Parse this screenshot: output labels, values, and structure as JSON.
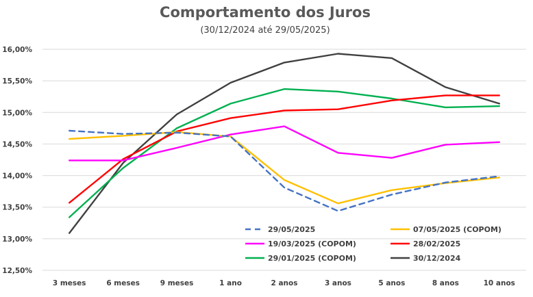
{
  "chart_data": {
    "type": "line",
    "title": "Comportamento dos Juros",
    "subtitle": "(30/12/2024 até 29/05/2025)",
    "categories": [
      "3 meses",
      "6 meses",
      "9 meses",
      "1 ano",
      "2 anos",
      "3 anos",
      "5 anos",
      "8 anos",
      "10 anos"
    ],
    "ylim": [
      12.5,
      16.0
    ],
    "y_ticks": [
      "12,50%",
      "13,00%",
      "13,50%",
      "14,00%",
      "14,50%",
      "15,00%",
      "15,50%",
      "16,00%"
    ],
    "y_tick_values": [
      12.5,
      13.0,
      13.5,
      14.0,
      14.5,
      15.0,
      15.5,
      16.0
    ],
    "grid": true,
    "legend_position": "bottom-right inside plot",
    "series": [
      {
        "name": "29/05/2025",
        "color": "#4472c4",
        "dashed": true,
        "values": [
          14.71,
          14.66,
          14.68,
          14.62,
          13.81,
          13.44,
          13.7,
          13.89,
          13.99
        ]
      },
      {
        "name": "07/05/2025 (COPOM)",
        "color": "#ffc000",
        "dashed": false,
        "values": [
          14.58,
          14.63,
          14.69,
          14.62,
          13.93,
          13.56,
          13.77,
          13.88,
          13.97
        ]
      },
      {
        "name": "19/03/2025 (COPOM)",
        "color": "#ff00ff",
        "dashed": false,
        "values": [
          14.24,
          14.24,
          14.44,
          14.65,
          14.78,
          14.36,
          14.28,
          14.49,
          14.53
        ]
      },
      {
        "name": "28/02/2025",
        "color": "#ff0000",
        "dashed": false,
        "values": [
          13.57,
          14.26,
          14.7,
          14.91,
          15.03,
          15.05,
          15.19,
          15.27,
          15.27
        ]
      },
      {
        "name": "29/01/2025 (COPOM)",
        "color": "#00b050",
        "dashed": false,
        "values": [
          13.34,
          14.12,
          14.75,
          15.14,
          15.37,
          15.33,
          15.22,
          15.08,
          15.1
        ]
      },
      {
        "name": "30/12/2024",
        "color": "#404040",
        "dashed": false,
        "values": [
          13.09,
          14.2,
          14.97,
          15.47,
          15.79,
          15.93,
          15.86,
          15.4,
          15.14
        ]
      }
    ]
  }
}
